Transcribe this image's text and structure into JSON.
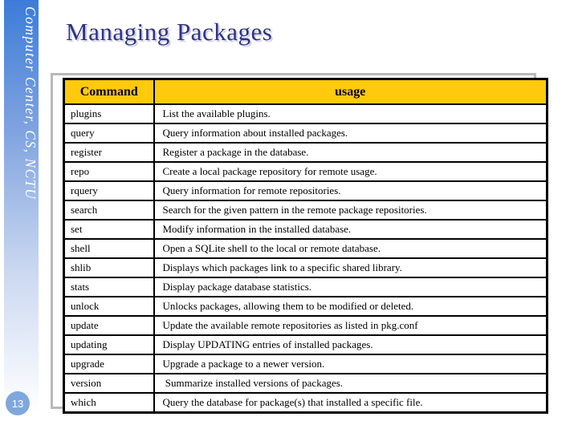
{
  "sidebar": {
    "text": "Computer Center, CS, NCTU",
    "page_number": "13"
  },
  "title": "Managing Packages",
  "table": {
    "columns": [
      "Command",
      "usage"
    ],
    "rows": [
      {
        "command": "plugins",
        "usage": "List the available plugins."
      },
      {
        "command": "query",
        "usage": "Query information about installed packages."
      },
      {
        "command": "register",
        "usage": "Register a package in the database."
      },
      {
        "command": "repo",
        "usage": "Create a local package repository for remote usage."
      },
      {
        "command": "rquery",
        "usage": "Query information for remote repositories."
      },
      {
        "command": "search",
        "usage": "Search for the given pattern in the remote package repositories."
      },
      {
        "command": "set",
        "usage": "Modify information in the installed database."
      },
      {
        "command": "shell",
        "usage": "Open a SQLite shell to the local or remote database."
      },
      {
        "command": "shlib",
        "usage": "Displays which packages link to a specific shared library."
      },
      {
        "command": "stats",
        "usage": "Display package database statistics."
      },
      {
        "command": "unlock",
        "usage": "Unlocks packages, allowing them to be modified or deleted."
      },
      {
        "command": "update",
        "usage": "Update the available remote repositories as listed in pkg.conf"
      },
      {
        "command": "updating",
        "usage": "Display UPDATING entries of installed packages."
      },
      {
        "command": "upgrade",
        "usage": "Upgrade a package to a newer version."
      },
      {
        "command": "version",
        "usage": " Summarize installed versions of packages."
      },
      {
        "command": "which",
        "usage": "Query the database for package(s) that installed a specific file."
      }
    ]
  },
  "colors": {
    "table_header_bg": "#FFC90E",
    "title_text": "#2F3384",
    "sidebar_top": "#3C7CD8",
    "sidebar_bottom": "#FFFFFF",
    "page_badge_bg": "#7FA7DE"
  }
}
